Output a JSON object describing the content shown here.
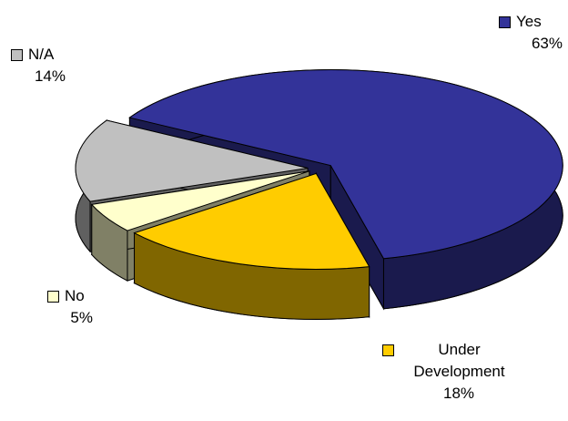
{
  "chart_data": {
    "type": "pie",
    "categories": [
      "Yes",
      "Under Development",
      "No",
      "N/A"
    ],
    "values": [
      63,
      18,
      5,
      14
    ],
    "value_labels": [
      "63%",
      "18%",
      "5%",
      "14%"
    ],
    "colors": [
      "#333399",
      "#ffcc00",
      "#ffffcc",
      "#c0c0c0"
    ]
  }
}
